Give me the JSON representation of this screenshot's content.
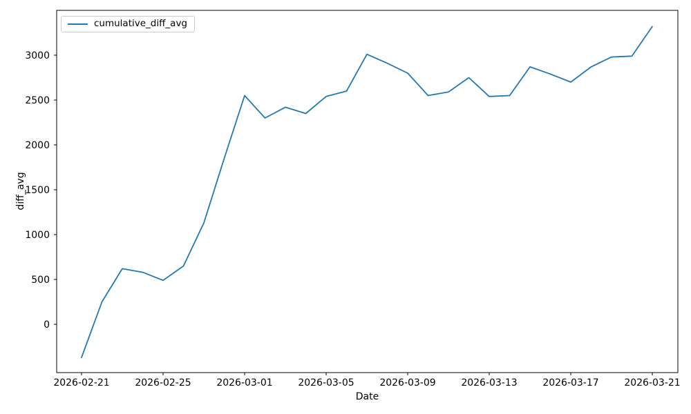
{
  "chart_data": {
    "type": "line",
    "title": "",
    "xlabel": "Date",
    "ylabel": "diff_avg",
    "grid": false,
    "legend_position": "upper left",
    "line_color": "#1f77b4",
    "x": [
      "2026-02-21",
      "2026-02-22",
      "2026-02-23",
      "2026-02-24",
      "2026-02-25",
      "2026-02-26",
      "2026-02-27",
      "2026-02-28",
      "2026-03-01",
      "2026-03-02",
      "2026-03-03",
      "2026-03-04",
      "2026-03-05",
      "2026-03-06",
      "2026-03-07",
      "2026-03-08",
      "2026-03-09",
      "2026-03-10",
      "2026-03-11",
      "2026-03-12",
      "2026-03-13",
      "2026-03-14",
      "2026-03-15",
      "2026-03-16",
      "2026-03-17",
      "2026-03-18",
      "2026-03-19",
      "2026-03-20",
      "2026-03-21"
    ],
    "series": [
      {
        "name": "cumulative_diff_avg",
        "color": "#1f77b4",
        "values": [
          -370,
          250,
          620,
          580,
          490,
          650,
          1130,
          1850,
          2550,
          2300,
          2420,
          2350,
          2540,
          2600,
          3010,
          2910,
          2800,
          2550,
          2590,
          2750,
          2540,
          2550,
          2870,
          2790,
          2700,
          2870,
          2980,
          2990,
          3320
        ]
      }
    ],
    "x_tick_labels": [
      "2026-02-21",
      "2026-02-25",
      "2026-03-01",
      "2026-03-05",
      "2026-03-09",
      "2026-03-13",
      "2026-03-17",
      "2026-03-21"
    ],
    "y_ticks": [
      0,
      500,
      1000,
      1500,
      2000,
      2500,
      3000
    ],
    "ylim": [
      -554,
      3505
    ]
  }
}
